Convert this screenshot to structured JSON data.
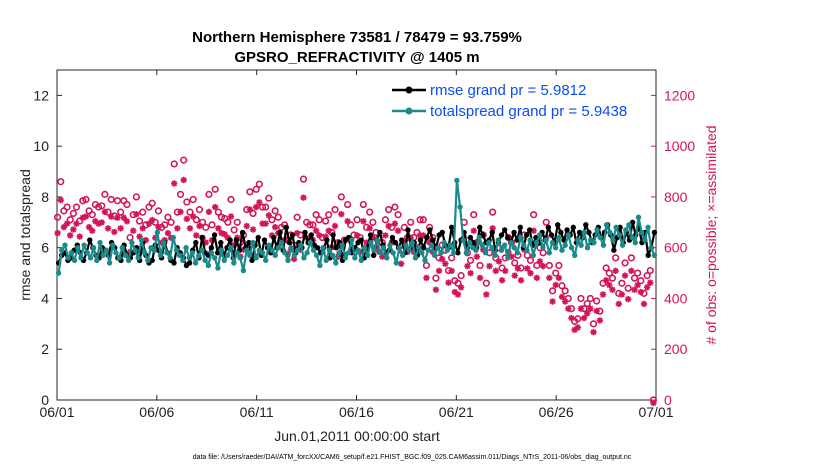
{
  "chart_data": {
    "type": "line",
    "title_line1": "Northern Hemisphere 73581 / 78479 = 93.759%",
    "title_line2": "GPSRO_REFRACTIVITY @ 1405 m",
    "ylabel_left": "rmse and totalspread",
    "ylabel_right": "# of obs: o=possible; ×=assimilated",
    "xlabel": "Jun.01,2011 00:00:00 start",
    "footnote": "data file: /Users/raeder/DAI/ATM_forcXX/CAM6_setup/f.e21.FHIST_BGC.f09_025.CAM6assim.011/Diags_NTrS_2011-06/obs_diag_output.nc",
    "x_range": [
      0,
      30
    ],
    "x_ticks": [
      0,
      5,
      10,
      15,
      20,
      25,
      30
    ],
    "x_tick_labels": [
      "06/01",
      "06/06",
      "06/11",
      "06/16",
      "06/21",
      "06/26",
      "07/01"
    ],
    "ylim_left": [
      0,
      13
    ],
    "yticks_left": [
      0,
      2,
      4,
      6,
      8,
      10,
      12
    ],
    "ylim_right": [
      0,
      1300
    ],
    "yticks_right": [
      0,
      200,
      400,
      600,
      800,
      1000,
      1200
    ],
    "legend": [
      {
        "label": "rmse grand pr = 5.9812",
        "color": "#000000"
      },
      {
        "label": "totalspread grand pr = 5.9438",
        "color": "#1a8a8a"
      }
    ],
    "colors": {
      "rmse": "#000000",
      "spread": "#1a8a8a",
      "obs": "#d4145a"
    },
    "rmse": [
      5.4,
      5.7,
      5.8,
      5.5,
      5.6,
      5.9,
      6.1,
      5.8,
      5.5,
      5.8,
      6.3,
      6.0,
      5.7,
      5.6,
      6.0,
      5.9,
      5.7,
      6.2,
      6.0,
      5.6,
      5.5,
      6.1,
      5.7,
      5.6,
      5.8,
      6.0,
      5.5,
      6.2,
      5.7,
      5.4,
      5.5,
      6.1,
      5.9,
      5.6,
      6.2,
      5.8,
      5.5,
      5.4,
      6.0,
      5.8,
      5.6,
      5.3,
      5.4,
      5.9,
      6.2,
      5.6,
      6.4,
      5.8,
      5.7,
      6.0,
      6.5,
      5.8,
      6.2,
      5.7,
      6.0,
      6.3,
      5.6,
      6.3,
      5.9,
      6.6,
      6.0,
      6.2,
      5.5,
      6.1,
      6.4,
      5.7,
      6.3,
      6.0,
      5.8,
      6.4,
      6.0,
      6.6,
      5.9,
      6.8,
      6.2,
      6.5,
      5.8,
      6.2,
      6.0,
      6.6,
      6.2,
      6.5,
      6.1,
      6.0,
      5.8,
      6.0,
      6.3,
      5.6,
      6.5,
      6.0,
      6.2,
      5.5,
      6.3,
      6.4,
      5.8,
      6.0,
      6.2,
      6.3,
      5.6,
      6.0,
      6.5,
      5.7,
      6.3,
      6.6,
      6.1,
      5.8,
      5.9,
      6.4,
      6.2,
      6.0,
      6.3,
      5.8,
      6.7,
      6.0,
      6.2,
      5.7,
      6.3,
      6.0,
      6.4,
      6.7,
      6.3,
      6.0,
      6.5,
      6.6,
      6.1,
      6.0,
      6.8,
      6.2,
      5.8,
      6.3,
      6.6,
      6.0,
      6.4,
      6.2,
      6.0,
      6.8,
      6.5,
      6.2,
      6.3,
      6.6,
      5.9,
      6.2,
      6.5,
      6.7,
      6.4,
      6.2,
      6.6,
      6.3,
      6.8,
      6.0,
      6.5,
      6.7,
      6.1,
      6.4,
      6.2,
      6.6,
      6.3,
      6.8,
      6.5,
      6.2,
      6.9,
      6.6,
      6.3,
      6.7,
      6.5,
      6.8,
      6.2,
      6.6,
      6.4,
      6.9,
      6.6,
      6.2,
      6.5,
      6.8,
      6.4,
      6.6,
      6.9,
      6.5,
      5.9,
      6.4,
      6.8,
      6.2,
      6.6,
      6.3,
      7.0,
      6.5,
      6.8,
      6.2,
      6.6,
      5.7,
      6.0,
      6.6
    ],
    "spread": [
      5.0,
      5.9,
      6.1,
      5.6,
      5.8,
      5.5,
      6.0,
      5.6,
      6.1,
      5.8,
      5.6,
      6.0,
      5.5,
      6.2,
      5.7,
      5.9,
      5.4,
      6.1,
      5.8,
      5.6,
      6.0,
      5.7,
      5.5,
      6.2,
      5.9,
      5.6,
      6.3,
      5.8,
      5.5,
      6.0,
      5.9,
      6.6,
      5.7,
      6.2,
      5.8,
      5.6,
      6.4,
      5.9,
      5.7,
      5.5,
      6.0,
      5.6,
      5.8,
      5.4,
      5.7,
      5.9,
      5.5,
      5.3,
      5.8,
      5.6,
      5.2,
      5.9,
      5.5,
      5.7,
      6.0,
      5.4,
      5.8,
      5.6,
      5.1,
      5.9,
      5.7,
      6.2,
      5.6,
      5.9,
      5.8,
      5.5,
      6.1,
      5.9,
      5.7,
      6.0,
      6.2,
      5.8,
      5.5,
      6.0,
      5.7,
      5.9,
      6.1,
      5.6,
      5.8,
      6.2,
      5.9,
      5.7,
      5.3,
      6.0,
      5.5,
      5.9,
      5.7,
      5.4,
      5.8,
      6.1,
      5.6,
      5.8,
      6.3,
      5.6,
      5.9,
      5.5,
      6.0,
      5.7,
      6.2,
      5.9,
      6.3,
      5.8,
      6.0,
      5.6,
      6.1,
      5.8,
      5.4,
      6.0,
      5.7,
      6.1,
      5.9,
      6.2,
      5.6,
      6.0,
      5.8,
      5.5,
      5.9,
      6.1,
      5.7,
      6.0,
      5.8,
      6.2,
      5.9,
      6.1,
      5.8,
      8.65,
      7.6,
      6.3,
      5.8,
      6.2,
      6.0,
      5.9,
      6.4,
      6.1,
      5.8,
      6.2,
      6.0,
      5.7,
      6.3,
      5.9,
      6.1,
      5.6,
      6.2,
      6.0,
      5.8,
      6.4,
      6.1,
      5.9,
      6.3,
      5.7,
      6.2,
      6.5,
      6.0,
      6.3,
      5.8,
      6.2,
      6.0,
      6.4,
      5.9,
      6.1,
      6.5,
      6.0,
      5.7,
      6.3,
      6.1,
      6.6,
      6.0,
      6.3,
      6.2,
      6.7,
      6.4,
      6.1,
      6.9,
      6.6,
      6.3,
      6.8,
      6.5,
      6.1,
      6.7,
      6.9,
      6.4,
      6.2,
      7.2,
      6.6,
      6.3,
      6.8,
      6.0,
      5.7
    ],
    "obs_possible": [
      720,
      860,
      745,
      760,
      710,
      735,
      760,
      705,
      785,
      790,
      745,
      730,
      770,
      760,
      765,
      810,
      740,
      790,
      725,
      785,
      740,
      785,
      770,
      640,
      730,
      800,
      705,
      740,
      690,
      760,
      775,
      700,
      745,
      680,
      690,
      720,
      700,
      930,
      740,
      810,
      945,
      780,
      740,
      790,
      710,
      750,
      700,
      680,
      810,
      690,
      830,
      740,
      720,
      715,
      700,
      790,
      670,
      700,
      620,
      650,
      750,
      820,
      735,
      830,
      850,
      760,
      760,
      795,
      710,
      745,
      720,
      680,
      690,
      630,
      650,
      610,
      720,
      650,
      870,
      700,
      690,
      690,
      730,
      710,
      640,
      705,
      730,
      660,
      750,
      620,
      800,
      630,
      770,
      690,
      650,
      710,
      640,
      770,
      680,
      740,
      700,
      660,
      640,
      620,
      710,
      750,
      680,
      760,
      730,
      590,
      680,
      640,
      700,
      640,
      660,
      710,
      710,
      530,
      680,
      640,
      480,
      560,
      610,
      590,
      510,
      560,
      470,
      460,
      490,
      700,
      580,
      550,
      730,
      620,
      530,
      650,
      460,
      580,
      740,
      560,
      600,
      520,
      560,
      640,
      620,
      540,
      570,
      520,
      650,
      570,
      550,
      730,
      530,
      600,
      580,
      700,
      530,
      430,
      500,
      530,
      450,
      430,
      400,
      360,
      310,
      320,
      400,
      360,
      380,
      400,
      300,
      390,
      350,
      460,
      520,
      500,
      480,
      560,
      420,
      460,
      540,
      440,
      560,
      480,
      500,
      470,
      420,
      490,
      510,
      0
    ]
  }
}
